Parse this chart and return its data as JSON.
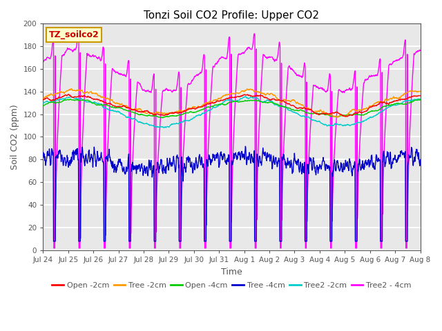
{
  "title": "Tonzi Soil CO2 Profile: Upper CO2",
  "xlabel": "Time",
  "ylabel": "Soil CO2 (ppm)",
  "ylim": [
    0,
    200
  ],
  "background_color": "#e8e8e8",
  "grid_color": "white",
  "text_color": "#555555",
  "legend_label": "TZ_soilco2",
  "legend_box_color": "#ffffcc",
  "legend_box_edge": "#cc9900",
  "series": [
    {
      "name": "Open -2cm",
      "color": "#ff0000"
    },
    {
      "name": "Tree -2cm",
      "color": "#ff9900"
    },
    {
      "name": "Open -4cm",
      "color": "#00cc00"
    },
    {
      "name": "Tree -4cm",
      "color": "#0000cc"
    },
    {
      "name": "Tree2 -2cm",
      "color": "#00cccc"
    },
    {
      "name": "Tree2 - 4cm",
      "color": "#ff00ff"
    }
  ],
  "tick_labels": [
    "Jul 24",
    "Jul 25",
    "Jul 26",
    "Jul 27",
    "Jul 28",
    "Jul 29",
    "Jul 30",
    "Jul 31",
    "Aug 1",
    "Aug 2",
    "Aug 3",
    "Aug 4",
    "Aug 5",
    "Aug 6",
    "Aug 7",
    "Aug 8"
  ],
  "tick_positions": [
    0,
    1,
    2,
    3,
    4,
    5,
    6,
    7,
    8,
    9,
    10,
    11,
    12,
    13,
    14,
    15
  ],
  "yticks": [
    0,
    20,
    40,
    60,
    80,
    100,
    120,
    140,
    160,
    180,
    200
  ],
  "figsize": [
    6.4,
    4.8
  ],
  "dpi": 100
}
